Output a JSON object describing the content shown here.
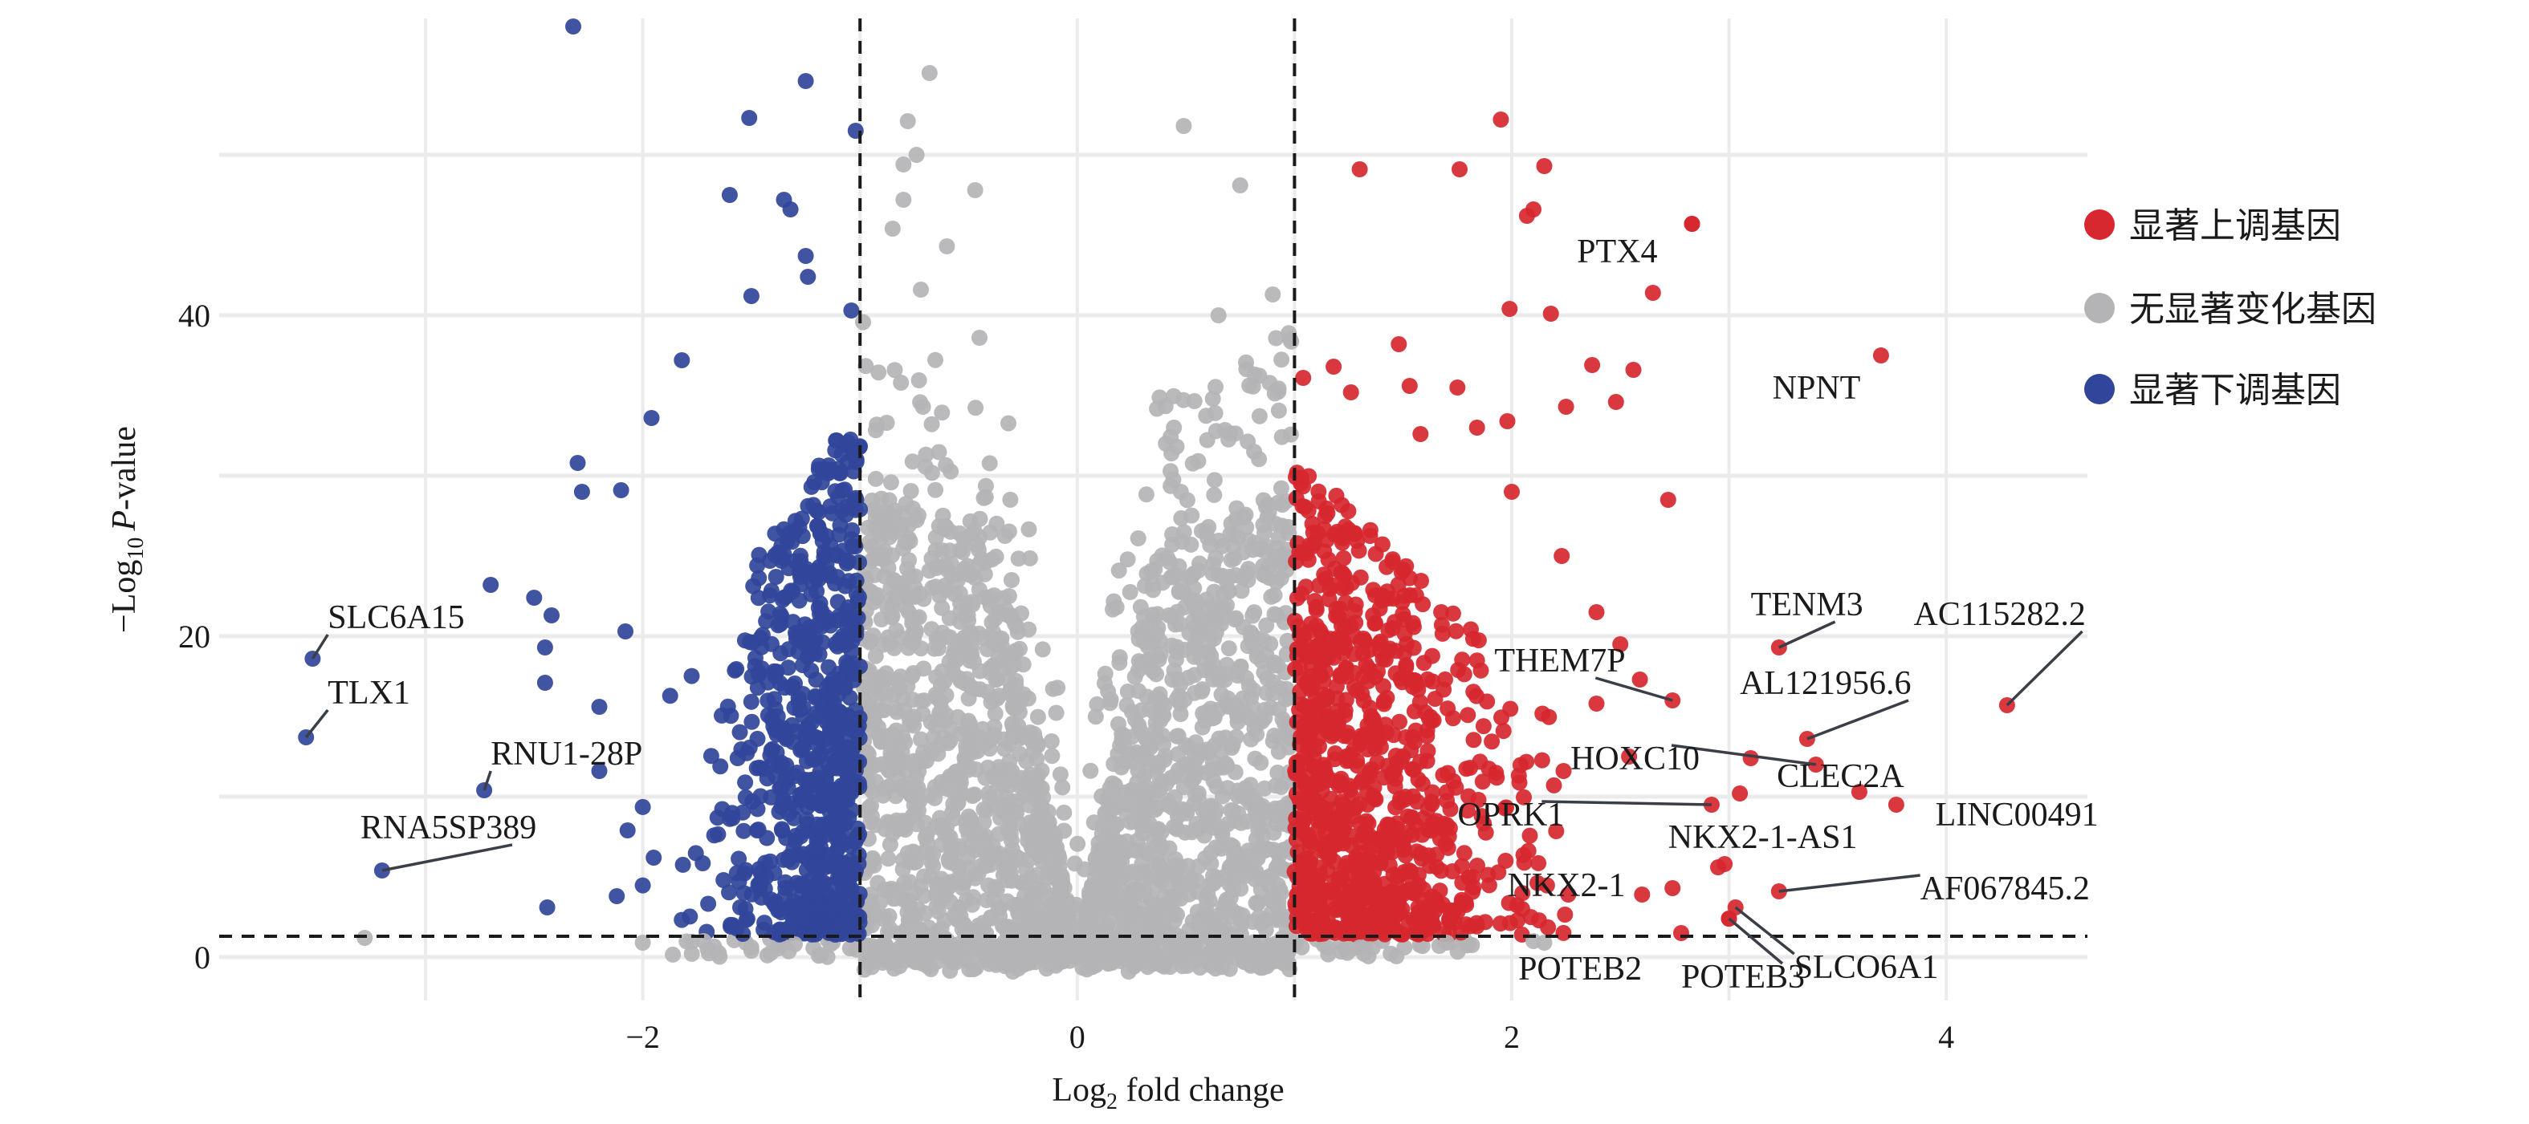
{
  "chart_data": {
    "type": "scatter",
    "subtype": "volcano",
    "title": "",
    "xlabel": "Log2 fold change",
    "xlabel_parts": {
      "base": "Log",
      "sub": "2",
      "rest": " fold change"
    },
    "ylabel": "−Log10 P-value",
    "ylabel_parts": {
      "prefix": "−Log",
      "sub": "10",
      "italic": "P",
      "rest": "-value"
    },
    "xlim": [
      -3.95,
      4.65
    ],
    "ylim": [
      -2.7,
      58.5
    ],
    "x_ticks": [
      -2,
      0,
      2,
      4
    ],
    "x_tick_labels": [
      "−2",
      "0",
      "2",
      "4"
    ],
    "y_ticks": [
      0,
      20,
      40
    ],
    "y_tick_labels": [
      "0",
      "20",
      "40"
    ],
    "x_gridlines": [
      -3,
      -2,
      -1,
      0,
      1,
      2,
      3,
      4
    ],
    "y_gridlines": [
      0,
      10,
      20,
      30,
      40,
      50
    ],
    "grid": true,
    "thresholds": {
      "log2fc": [
        -1,
        1
      ],
      "neg_log10_p": 1.3
    },
    "legend": {
      "position": "right",
      "entries": [
        {
          "label": "显著上调基因",
          "color": "#d7272f",
          "group": "up"
        },
        {
          "label": "无显著变化基因",
          "color": "#b4b4b6",
          "group": "ns"
        },
        {
          "label": "显著下调基因",
          "color": "#31459a",
          "group": "down"
        }
      ]
    },
    "groups": {
      "up": {
        "color": "#d7272f",
        "x_range": [
          1.0,
          3.0
        ],
        "count": 900
      },
      "ns": {
        "color": "#b4b4b6",
        "x_range": [
          -1.0,
          1.0
        ],
        "count": 2600
      },
      "down": {
        "color": "#31459a",
        "x_range": [
          -2.1,
          -1.0
        ],
        "count": 750
      }
    },
    "sparse_points": [
      {
        "x": -2.32,
        "y": 58.0,
        "g": "down"
      },
      {
        "x": -1.25,
        "y": 54.6,
        "g": "down"
      },
      {
        "x": -1.51,
        "y": 52.3,
        "g": "down"
      },
      {
        "x": -1.02,
        "y": 51.5,
        "g": "down"
      },
      {
        "x": -1.6,
        "y": 47.5,
        "g": "down"
      },
      {
        "x": -1.35,
        "y": 47.2,
        "g": "down"
      },
      {
        "x": -1.32,
        "y": 46.6,
        "g": "down"
      },
      {
        "x": -1.25,
        "y": 43.7,
        "g": "down"
      },
      {
        "x": -1.24,
        "y": 42.4,
        "g": "down"
      },
      {
        "x": -1.5,
        "y": 41.2,
        "g": "down"
      },
      {
        "x": -1.04,
        "y": 40.3,
        "g": "down"
      },
      {
        "x": -1.82,
        "y": 37.2,
        "g": "down"
      },
      {
        "x": -1.96,
        "y": 33.6,
        "g": "down"
      },
      {
        "x": -2.3,
        "y": 30.8,
        "g": "down"
      },
      {
        "x": -2.28,
        "y": 29.0,
        "g": "down"
      },
      {
        "x": -2.1,
        "y": 29.1,
        "g": "down"
      },
      {
        "x": -2.5,
        "y": 22.4,
        "g": "down"
      },
      {
        "x": -2.42,
        "y": 21.3,
        "g": "down"
      },
      {
        "x": -2.7,
        "y": 23.2,
        "g": "down"
      },
      {
        "x": -2.08,
        "y": 20.3,
        "g": "down"
      },
      {
        "x": -2.45,
        "y": 19.3,
        "g": "down"
      },
      {
        "x": -2.2,
        "y": 15.6,
        "g": "down"
      },
      {
        "x": -2.45,
        "y": 17.1,
        "g": "down"
      },
      {
        "x": -2.2,
        "y": 11.6,
        "g": "down"
      },
      {
        "x": -2.07,
        "y": 7.9,
        "g": "down"
      },
      {
        "x": -2.44,
        "y": 3.1,
        "g": "down"
      },
      {
        "x": -2.12,
        "y": 3.8,
        "g": "down"
      },
      {
        "x": -1.95,
        "y": 6.2,
        "g": "down"
      },
      {
        "x": -3.28,
        "y": 1.2,
        "g": "ns"
      },
      {
        "x": -2.0,
        "y": 0.9,
        "g": "ns"
      },
      {
        "x": -1.72,
        "y": 1.0,
        "g": "ns"
      },
      {
        "x": -1.5,
        "y": 0.4,
        "g": "ns"
      },
      {
        "x": -1.3,
        "y": 0.8,
        "g": "ns"
      },
      {
        "x": -0.68,
        "y": 55.1,
        "g": "ns"
      },
      {
        "x": -0.78,
        "y": 52.1,
        "g": "ns"
      },
      {
        "x": -0.74,
        "y": 50.0,
        "g": "ns"
      },
      {
        "x": -0.8,
        "y": 49.4,
        "g": "ns"
      },
      {
        "x": -0.47,
        "y": 47.8,
        "g": "ns"
      },
      {
        "x": -0.8,
        "y": 47.2,
        "g": "ns"
      },
      {
        "x": -0.85,
        "y": 45.4,
        "g": "ns"
      },
      {
        "x": -0.6,
        "y": 44.3,
        "g": "ns"
      },
      {
        "x": -0.72,
        "y": 41.6,
        "g": "ns"
      },
      {
        "x": 0.49,
        "y": 51.8,
        "g": "ns"
      },
      {
        "x": 0.75,
        "y": 48.1,
        "g": "ns"
      },
      {
        "x": 0.65,
        "y": 40.0,
        "g": "ns"
      },
      {
        "x": 0.9,
        "y": 41.3,
        "g": "ns"
      },
      {
        "x": 0.98,
        "y": 38.5,
        "g": "ns"
      },
      {
        "x": -0.45,
        "y": 38.6,
        "g": "ns"
      },
      {
        "x": 1.3,
        "y": 0.6,
        "g": "ns"
      },
      {
        "x": 1.7,
        "y": 0.9,
        "g": "ns"
      },
      {
        "x": 2.1,
        "y": 1.0,
        "g": "ns"
      },
      {
        "x": 2.15,
        "y": 0.9,
        "g": "ns"
      },
      {
        "x": 1.95,
        "y": 52.2,
        "g": "up"
      },
      {
        "x": 1.3,
        "y": 49.1,
        "g": "up"
      },
      {
        "x": 1.76,
        "y": 49.1,
        "g": "up"
      },
      {
        "x": 2.15,
        "y": 49.3,
        "g": "up"
      },
      {
        "x": 2.1,
        "y": 46.6,
        "g": "up"
      },
      {
        "x": 2.07,
        "y": 46.2,
        "g": "up"
      },
      {
        "x": 2.83,
        "y": 45.7,
        "g": "up"
      },
      {
        "x": 2.65,
        "y": 41.4,
        "g": "up"
      },
      {
        "x": 1.99,
        "y": 40.4,
        "g": "up"
      },
      {
        "x": 2.18,
        "y": 40.1,
        "g": "up"
      },
      {
        "x": 1.48,
        "y": 38.2,
        "g": "up"
      },
      {
        "x": 1.18,
        "y": 36.8,
        "g": "up"
      },
      {
        "x": 1.04,
        "y": 36.1,
        "g": "up"
      },
      {
        "x": 2.37,
        "y": 36.9,
        "g": "up"
      },
      {
        "x": 2.56,
        "y": 36.6,
        "g": "up"
      },
      {
        "x": 1.26,
        "y": 35.2,
        "g": "up"
      },
      {
        "x": 1.53,
        "y": 35.6,
        "g": "up"
      },
      {
        "x": 1.75,
        "y": 35.5,
        "g": "up"
      },
      {
        "x": 2.25,
        "y": 34.3,
        "g": "up"
      },
      {
        "x": 2.48,
        "y": 34.6,
        "g": "up"
      },
      {
        "x": 1.98,
        "y": 33.4,
        "g": "up"
      },
      {
        "x": 1.84,
        "y": 33.0,
        "g": "up"
      },
      {
        "x": 1.58,
        "y": 32.6,
        "g": "up"
      },
      {
        "x": 2.72,
        "y": 28.5,
        "g": "up"
      },
      {
        "x": 2.0,
        "y": 29.0,
        "g": "up"
      },
      {
        "x": 2.23,
        "y": 25.0,
        "g": "up"
      },
      {
        "x": 2.39,
        "y": 21.5,
        "g": "up"
      },
      {
        "x": 2.5,
        "y": 19.5,
        "g": "up"
      },
      {
        "x": 2.59,
        "y": 17.3,
        "g": "up"
      },
      {
        "x": 2.39,
        "y": 15.8,
        "g": "up"
      },
      {
        "x": 2.54,
        "y": 12.5,
        "g": "up"
      },
      {
        "x": 2.95,
        "y": 5.6,
        "g": "up"
      },
      {
        "x": 2.78,
        "y": 1.5,
        "g": "up"
      },
      {
        "x": 2.74,
        "y": 4.3,
        "g": "up"
      },
      {
        "x": 2.6,
        "y": 3.9,
        "g": "up"
      },
      {
        "x": 3.1,
        "y": 12.4,
        "g": "up"
      },
      {
        "x": 3.05,
        "y": 10.2,
        "g": "up"
      }
    ],
    "labeled_genes": [
      {
        "name": "SLC6A15",
        "x": -3.52,
        "y": 18.6,
        "g": "down",
        "anchor": "start",
        "lx": -3.45,
        "ly": 20.5
      },
      {
        "name": "TLX1",
        "x": -3.55,
        "y": 13.7,
        "g": "down",
        "anchor": "start",
        "lx": -3.45,
        "ly": 15.8
      },
      {
        "name": "RNU1-28P",
        "x": -2.73,
        "y": 10.4,
        "g": "down",
        "anchor": "start",
        "lx": -2.7,
        "ly": 12.0
      },
      {
        "name": "RNA5SP389",
        "x": -3.2,
        "y": 5.4,
        "g": "down",
        "anchor": "start",
        "lx": -3.3,
        "ly": 7.4
      },
      {
        "name": "PTX4",
        "x": 2.83,
        "y": 45.7,
        "g": "up",
        "anchor": "start",
        "lx": 2.3,
        "ly": 43.3,
        "noline": true
      },
      {
        "name": "NPNT",
        "x": 3.7,
        "y": 37.5,
        "g": "up",
        "anchor": "start",
        "lx": 3.2,
        "ly": 34.8,
        "noline": true
      },
      {
        "name": "TENM3",
        "x": 3.23,
        "y": 19.3,
        "g": "up",
        "anchor": "start",
        "lx": 3.1,
        "ly": 21.3
      },
      {
        "name": "AC115282.2",
        "x": 4.28,
        "y": 15.7,
        "g": "up",
        "anchor": "start",
        "lx": 3.85,
        "ly": 20.7
      },
      {
        "name": "THEM7P",
        "x": 2.74,
        "y": 16.0,
        "g": "up",
        "anchor": "start",
        "lx": 1.92,
        "ly": 17.8
      },
      {
        "name": "AL121956.6",
        "x": 3.36,
        "y": 13.6,
        "g": "up",
        "anchor": "start",
        "lx": 3.05,
        "ly": 16.4
      },
      {
        "name": "HOXC10",
        "x": 3.4,
        "y": 12.0,
        "g": "up",
        "anchor": "start",
        "lx": 2.27,
        "ly": 11.7
      },
      {
        "name": "CLEC2A",
        "x": 3.6,
        "y": 10.3,
        "g": "up",
        "anchor": "start",
        "lx": 3.22,
        "ly": 10.6,
        "noline": true
      },
      {
        "name": "OPRK1",
        "x": 2.92,
        "y": 9.5,
        "g": "up",
        "anchor": "start",
        "lx": 1.75,
        "ly": 8.2
      },
      {
        "name": "LINC00491",
        "x": 3.77,
        "y": 9.5,
        "g": "up",
        "anchor": "start",
        "lx": 3.95,
        "ly": 8.2,
        "noline": true
      },
      {
        "name": "NKX2-1-AS1",
        "x": 2.98,
        "y": 5.8,
        "g": "up",
        "anchor": "start",
        "lx": 2.72,
        "ly": 6.8,
        "noline": true
      },
      {
        "name": "NKX2-1",
        "x": 2.26,
        "y": 3.9,
        "g": "up",
        "anchor": "start",
        "lx": 1.98,
        "ly": 3.8,
        "noline": true
      },
      {
        "name": "AF067845.2",
        "x": 3.23,
        "y": 4.1,
        "g": "up",
        "anchor": "start",
        "lx": 3.88,
        "ly": 3.6
      },
      {
        "name": "POTEB2",
        "x": 3.0,
        "y": 2.4,
        "g": "up",
        "anchor": "start",
        "lx": 2.03,
        "ly": -1.4,
        "noline": true
      },
      {
        "name": "POTEB3",
        "x": 3.0,
        "y": 2.4,
        "g": "up",
        "anchor": "start",
        "lx": 2.78,
        "ly": -1.9
      },
      {
        "name": "SLCO6A1",
        "x": 3.03,
        "y": 3.1,
        "g": "up",
        "anchor": "start",
        "lx": 3.3,
        "ly": -1.3
      }
    ]
  }
}
